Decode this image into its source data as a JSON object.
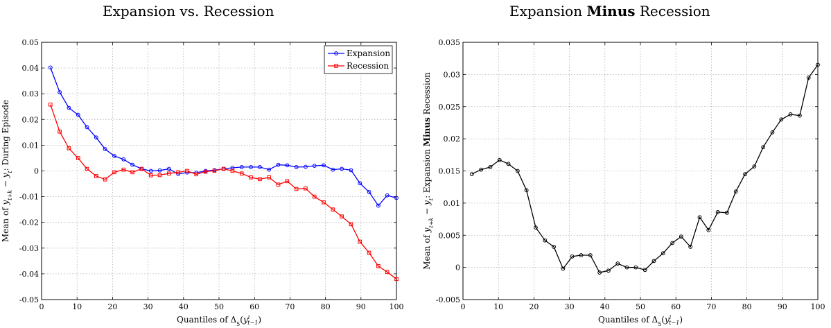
{
  "chart_data": [
    {
      "type": "line",
      "title": "Expansion vs. Recession",
      "xlabel": "Quantiles of Δ5(y^i_{t−1})",
      "ylabel": "Mean of y_{t+k} − y_t: During Episode",
      "xlim": [
        0,
        100
      ],
      "ylim": [
        -0.05,
        0.05
      ],
      "xticks": [
        "0",
        "10",
        "20",
        "30",
        "40",
        "50",
        "60",
        "70",
        "80",
        "90",
        "100"
      ],
      "yticks": [
        "-0.05",
        "-0.04",
        "-0.03",
        "-0.02",
        "-0.01",
        "0",
        "0.01",
        "0.02",
        "0.03",
        "0.04",
        "0.05"
      ],
      "grid": true,
      "legend_position": "top-right",
      "x": [
        2.5,
        5.1,
        7.7,
        10.3,
        12.8,
        15.4,
        17.9,
        20.5,
        23.1,
        25.6,
        28.2,
        30.8,
        33.3,
        35.9,
        38.5,
        41.0,
        43.6,
        46.2,
        48.7,
        51.3,
        53.8,
        56.4,
        59.0,
        61.5,
        64.1,
        66.7,
        69.2,
        71.8,
        74.4,
        76.9,
        79.5,
        82.1,
        84.6,
        87.2,
        89.7,
        92.3,
        94.9,
        97.4,
        100
      ],
      "series": [
        {
          "name": "Expansion",
          "color": "#0000ff",
          "marker": "circle",
          "values": [
            0.0402,
            0.0306,
            0.0245,
            0.0218,
            0.017,
            0.013,
            0.0085,
            0.0058,
            0.0045,
            0.0024,
            0.0008,
            0.0,
            0.0002,
            0.0008,
            -0.0012,
            -0.0006,
            -0.0007,
            0.0,
            0.0003,
            0.0008,
            0.0012,
            0.0015,
            0.0015,
            0.0015,
            0.0005,
            0.0024,
            0.0022,
            0.0015,
            0.0016,
            0.002,
            0.0022,
            0.0005,
            0.0008,
            0.0003,
            -0.0048,
            -0.0082,
            -0.0135,
            -0.0095,
            -0.0105
          ]
        },
        {
          "name": "Recession",
          "color": "#ff0000",
          "marker": "square",
          "values": [
            0.0258,
            0.0153,
            0.0088,
            0.005,
            0.0008,
            -0.002,
            -0.0033,
            -0.0005,
            0.0005,
            -0.0005,
            0.0008,
            -0.0017,
            -0.0016,
            -0.001,
            -0.0005,
            0.0,
            -0.0013,
            -0.0003,
            0.0001,
            0.0008,
            0.0,
            -0.001,
            -0.0025,
            -0.0032,
            -0.0025,
            -0.0053,
            -0.004,
            -0.007,
            -0.0068,
            -0.01,
            -0.0122,
            -0.015,
            -0.0177,
            -0.0207,
            -0.0275,
            -0.0318,
            -0.037,
            -0.0393,
            -0.042
          ]
        }
      ]
    },
    {
      "type": "line",
      "title_prefix": "Expansion",
      "title_bold": "Minus",
      "title_suffix": "Recession",
      "xlabel": "Quantiles of Δ5(y^i_{t−1})",
      "ylabel_prefix": "Mean of y_{t+k} − y_t: Expansion",
      "ylabel_bold": "Minus",
      "ylabel_suffix": "Recession",
      "xlim": [
        0,
        100
      ],
      "ylim": [
        -0.005,
        0.035
      ],
      "xticks": [
        "0",
        "10",
        "20",
        "30",
        "40",
        "50",
        "60",
        "70",
        "80",
        "90",
        "100"
      ],
      "yticks": [
        "-0.005",
        "0",
        "0.005",
        "0.01",
        "0.015",
        "0.02",
        "0.025",
        "0.03",
        "0.035"
      ],
      "grid": true,
      "x": [
        2.5,
        5.1,
        7.7,
        10.3,
        12.8,
        15.4,
        17.9,
        20.5,
        23.1,
        25.6,
        28.2,
        30.8,
        33.3,
        35.9,
        38.5,
        41.0,
        43.6,
        46.2,
        48.7,
        51.3,
        53.8,
        56.4,
        59.0,
        61.5,
        64.1,
        66.7,
        69.2,
        71.8,
        74.4,
        76.9,
        79.5,
        82.1,
        84.6,
        87.2,
        89.7,
        92.3,
        94.9,
        97.4,
        100
      ],
      "series": [
        {
          "color": "#000000",
          "marker": "circle",
          "values": [
            0.0145,
            0.0152,
            0.0156,
            0.0167,
            0.0161,
            0.015,
            0.012,
            0.0062,
            0.0042,
            0.0032,
            -0.0002,
            0.0017,
            0.0019,
            0.0019,
            -0.0008,
            -0.0005,
            0.0006,
            0.0,
            0.0,
            -0.0004,
            0.001,
            0.0022,
            0.0038,
            0.0048,
            0.0032,
            0.0078,
            0.0058,
            0.0086,
            0.0085,
            0.0118,
            0.0145,
            0.0157,
            0.0187,
            0.021,
            0.023,
            0.0238,
            0.0236,
            0.0295,
            0.0315
          ]
        }
      ]
    }
  ]
}
